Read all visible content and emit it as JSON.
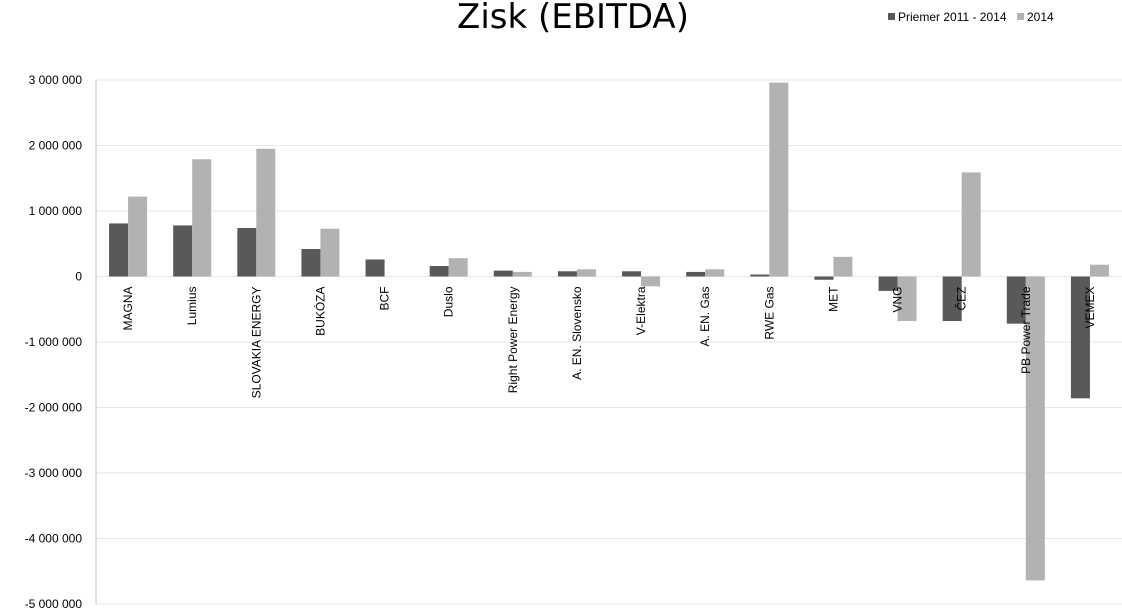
{
  "chart_data": {
    "type": "bar",
    "title": "Zisk (EBITDA)",
    "xlabel": "",
    "ylabel": "",
    "ylim": [
      -5000000,
      3000000
    ],
    "yticks": [
      3000000,
      2000000,
      1000000,
      0,
      -1000000,
      -2000000,
      -3000000,
      -4000000,
      -5000000
    ],
    "ytick_labels": [
      "3 000 000",
      "2 000 000",
      "1 000 000",
      "0",
      "-1 000 000",
      "-2 000 000",
      "-3 000 000",
      "-4 000 000",
      "-5 000 000"
    ],
    "grid": true,
    "legend_position": "top-right",
    "categories": [
      "MAGNA",
      "Lumius",
      "SLOVAKIA ENERGY",
      "BUKÓZA",
      "BCF",
      "Duslo",
      "Right Power Energy",
      "A. EN. Slovensko",
      "V-Elektra",
      "A. EN. Gas",
      "RWE Gas",
      "MET",
      "VNG",
      "ČEZ",
      "PB Power Trade",
      "VEMEX"
    ],
    "series": [
      {
        "name": "Priemer 2011 - 2014",
        "color": "#595959",
        "values": [
          810000,
          780000,
          740000,
          420000,
          260000,
          160000,
          90000,
          80000,
          80000,
          70000,
          30000,
          -50000,
          -220000,
          -680000,
          -720000,
          -1860000
        ]
      },
      {
        "name": "2014",
        "color": "#b2b2b2",
        "values": [
          1220000,
          1790000,
          1950000,
          730000,
          0,
          280000,
          70000,
          110000,
          -150000,
          110000,
          2960000,
          300000,
          -680000,
          1590000,
          -4640000,
          180000
        ]
      }
    ]
  }
}
